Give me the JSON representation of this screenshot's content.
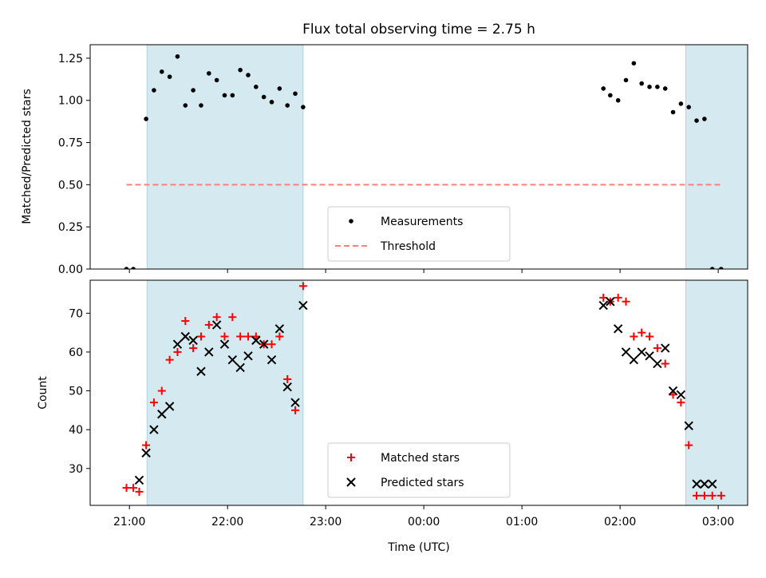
{
  "figure": {
    "title": "Flux total observing time = 2.75 h"
  },
  "chart_data": [
    {
      "type": "scatter",
      "ylabel": "Matched/Predicted stars",
      "x_tick_labels": [
        "21:00",
        "22:00",
        "23:00",
        "00:00",
        "01:00",
        "02:00",
        "03:00"
      ],
      "x_ticks_h": [
        21,
        22,
        23,
        24,
        25,
        26,
        27
      ],
      "y_ticks": [
        0.0,
        0.25,
        0.5,
        0.75,
        1.0,
        1.25
      ],
      "y_tick_labels": [
        "0.00",
        "0.25",
        "0.50",
        "0.75",
        "1.00",
        "1.25"
      ],
      "xlim_h": [
        20.6,
        27.3
      ],
      "ylim": [
        0,
        1.33
      ],
      "shaded_spans_h": [
        [
          21.18,
          22.77
        ],
        [
          26.67,
          27.57
        ]
      ],
      "shade_color": "#d4eaf0",
      "series": [
        {
          "name": "Measurements",
          "color": "#000000",
          "marker": "dot",
          "x_h": [
            20.97,
            21.04,
            21.17,
            21.25,
            21.33,
            21.41,
            21.49,
            21.57,
            21.65,
            21.73,
            21.81,
            21.89,
            21.97,
            22.05,
            22.13,
            22.21,
            22.29,
            22.37,
            22.45,
            22.53,
            22.61,
            22.69,
            22.77,
            25.83,
            25.9,
            25.98,
            26.06,
            26.14,
            26.22,
            26.3,
            26.38,
            26.46,
            26.54,
            26.62,
            26.7,
            26.78,
            26.86,
            26.94,
            27.03
          ],
          "y": [
            0.0,
            0.0,
            0.89,
            1.06,
            1.17,
            1.14,
            1.26,
            0.97,
            1.06,
            0.97,
            1.16,
            1.12,
            1.03,
            1.03,
            1.18,
            1.15,
            1.08,
            1.02,
            0.99,
            1.07,
            0.97,
            1.04,
            0.96,
            1.07,
            1.03,
            1.0,
            1.12,
            1.22,
            1.1,
            1.08,
            1.08,
            1.07,
            0.93,
            0.98,
            0.96,
            0.88,
            0.89,
            0.0,
            0.0
          ]
        },
        {
          "name": "Threshold",
          "color": "#ff7f7f",
          "style": "dashed",
          "x_h": [
            20.97,
            27.03
          ],
          "y": [
            0.5,
            0.5
          ]
        }
      ],
      "legend": {
        "placement": "lower-center",
        "entries": [
          "Measurements",
          "Threshold"
        ]
      }
    },
    {
      "type": "scatter",
      "xlabel": "Time (UTC)",
      "ylabel": "Count",
      "x_tick_labels": [
        "21:00",
        "22:00",
        "23:00",
        "00:00",
        "01:00",
        "02:00",
        "03:00"
      ],
      "x_ticks_h": [
        21,
        22,
        23,
        24,
        25,
        26,
        27
      ],
      "y_ticks": [
        30,
        40,
        50,
        60,
        70
      ],
      "y_tick_labels": [
        "30",
        "40",
        "50",
        "60",
        "70"
      ],
      "xlim_h": [
        20.6,
        27.3
      ],
      "ylim": [
        20.5,
        78.5
      ],
      "shaded_spans_h": [
        [
          21.18,
          22.77
        ],
        [
          26.67,
          27.57
        ]
      ],
      "shade_color": "#d4eaf0",
      "series": [
        {
          "name": "Matched stars",
          "color": "#ff0000",
          "marker": "plus",
          "x_h": [
            20.97,
            21.04,
            21.1,
            21.17,
            21.25,
            21.33,
            21.41,
            21.49,
            21.57,
            21.65,
            21.73,
            21.81,
            21.89,
            21.97,
            22.05,
            22.13,
            22.21,
            22.29,
            22.37,
            22.45,
            22.53,
            22.61,
            22.69,
            22.77,
            25.83,
            25.9,
            25.98,
            26.06,
            26.14,
            26.22,
            26.3,
            26.38,
            26.46,
            26.54,
            26.62,
            26.7,
            26.78,
            26.86,
            26.94,
            27.03
          ],
          "y": [
            25,
            25,
            24,
            36,
            47,
            50,
            58,
            60,
            68,
            61,
            64,
            67,
            69,
            64,
            69,
            64,
            64,
            64,
            62,
            62,
            64,
            53,
            45,
            77,
            74,
            73,
            74,
            73,
            64,
            65,
            64,
            61,
            57,
            49,
            47,
            36,
            23,
            23,
            23,
            23
          ],
          "note": "last point x extends beyond 3:00"
        },
        {
          "name": "Predicted stars",
          "color": "#000000",
          "marker": "x",
          "x_h": [
            21.1,
            21.17,
            21.25,
            21.33,
            21.41,
            21.49,
            21.57,
            21.65,
            21.73,
            21.81,
            21.89,
            21.97,
            22.05,
            22.13,
            22.21,
            22.29,
            22.37,
            22.45,
            22.53,
            22.61,
            22.69,
            22.77,
            25.83,
            25.9,
            25.98,
            26.06,
            26.14,
            26.22,
            26.3,
            26.38,
            26.46,
            26.54,
            26.62,
            26.7,
            26.78,
            26.86,
            26.94
          ],
          "y": [
            27,
            34,
            40,
            44,
            46,
            62,
            64,
            63,
            55,
            60,
            67,
            62,
            58,
            56,
            59,
            63,
            62,
            58,
            66,
            51,
            47,
            72,
            72,
            73,
            66,
            60,
            58,
            60,
            59,
            57,
            61,
            50,
            49,
            41,
            26,
            26,
            26
          ]
        }
      ],
      "legend": {
        "placement": "lower-center",
        "entries": [
          "Matched stars",
          "Predicted stars"
        ]
      }
    }
  ]
}
